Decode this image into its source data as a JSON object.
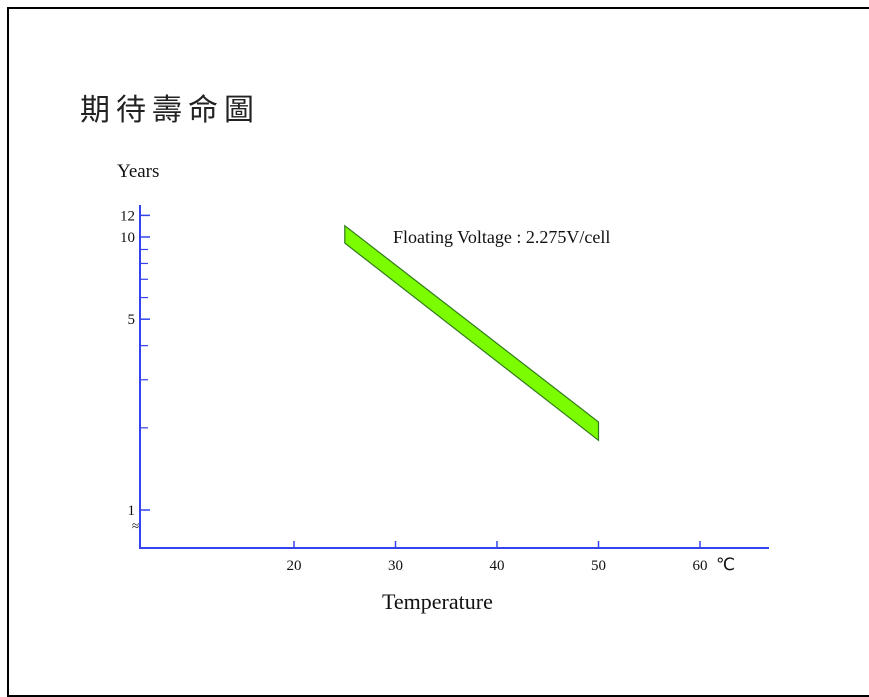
{
  "chart_data": {
    "type": "area",
    "title": "期待壽命圖",
    "ylabel": "Years",
    "xlabel": "Temperature",
    "x_unit": "℃",
    "x_ticks": [
      20,
      30,
      40,
      50,
      60
    ],
    "y_ticks": [
      1,
      5,
      10,
      12
    ],
    "y_scale": "log",
    "annotation": "Floating Voltage : 2.275V/cell",
    "series": [
      {
        "x": [
          25,
          50
        ],
        "upper": [
          11.0,
          2.1
        ],
        "lower": [
          9.5,
          1.8
        ]
      }
    ],
    "band_color": "#7cfc00",
    "axis_color": "#3344ee"
  }
}
